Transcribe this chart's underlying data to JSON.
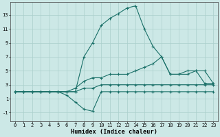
{
  "xlabel": "Humidex (Indice chaleur)",
  "bg_color": "#cce8e6",
  "grid_color": "#aacfcc",
  "line_color": "#1a7068",
  "xlim": [
    -0.5,
    23.5
  ],
  "ylim": [
    -2.2,
    14.8
  ],
  "xticks": [
    0,
    1,
    2,
    3,
    4,
    5,
    6,
    7,
    8,
    9,
    10,
    11,
    12,
    13,
    14,
    15,
    16,
    17,
    18,
    19,
    20,
    21,
    22,
    23
  ],
  "yticks": [
    -1,
    1,
    3,
    5,
    7,
    9,
    11,
    13
  ],
  "series": [
    {
      "x": [
        0,
        1,
        2,
        3,
        4,
        5,
        6,
        7,
        8,
        9,
        10,
        11,
        12,
        13,
        14,
        15,
        16,
        17,
        18,
        19,
        20,
        21,
        22,
        23
      ],
      "y": [
        2,
        2,
        2,
        2,
        2,
        2,
        2,
        2,
        7,
        9,
        11.5,
        12.5,
        13.2,
        14.0,
        14.3,
        11.0,
        8.5,
        7.0,
        4.5,
        4.5,
        5.0,
        5.0,
        3.2,
        3.2
      ]
    },
    {
      "x": [
        0,
        1,
        2,
        3,
        4,
        5,
        6,
        7,
        8,
        9,
        10,
        11,
        12,
        13,
        14,
        15,
        16,
        17,
        18,
        19,
        20,
        21,
        22,
        23
      ],
      "y": [
        2,
        2,
        2,
        2,
        2,
        2,
        2,
        2.5,
        3.5,
        4.0,
        4.0,
        4.5,
        4.5,
        4.5,
        5.0,
        5.5,
        6.0,
        7.0,
        4.5,
        4.5,
        4.5,
        5.0,
        5.0,
        3.2
      ]
    },
    {
      "x": [
        0,
        1,
        2,
        3,
        4,
        5,
        6,
        7,
        8,
        9,
        10,
        11,
        12,
        13,
        14,
        15,
        16,
        17,
        18,
        19,
        20,
        21,
        22,
        23
      ],
      "y": [
        2,
        2,
        2,
        2,
        2,
        2,
        2,
        2,
        2.5,
        2.5,
        3.0,
        3.0,
        3.0,
        3.0,
        3.0,
        3.0,
        3.0,
        3.0,
        3.0,
        3.0,
        3.0,
        3.0,
        3.0,
        3.0
      ]
    },
    {
      "x": [
        0,
        1,
        2,
        3,
        4,
        5,
        6,
        7,
        8,
        9,
        10,
        11,
        12,
        13,
        14,
        15,
        16,
        17,
        18,
        19,
        20,
        21,
        22,
        23
      ],
      "y": [
        2,
        2,
        2,
        2,
        2,
        2,
        1.5,
        0.5,
        -0.5,
        -0.8,
        2.0,
        2.0,
        2.0,
        2.0,
        2.0,
        2.0,
        2.0,
        2.0,
        2.0,
        2.0,
        2.0,
        2.0,
        2.0,
        2.0
      ]
    }
  ]
}
